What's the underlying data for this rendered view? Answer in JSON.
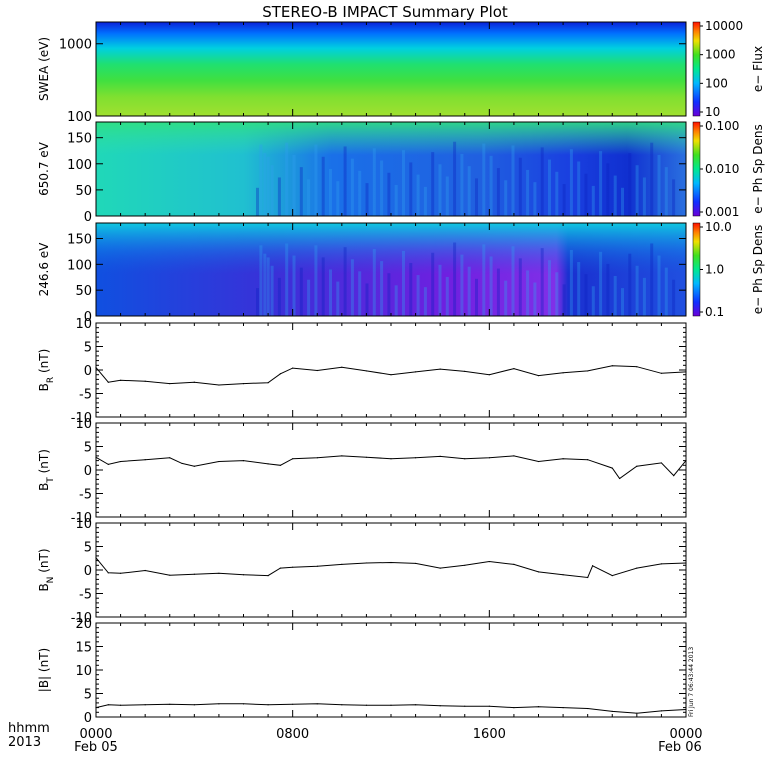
{
  "chart_data": {
    "title": "STEREO-B IMPACT Summary Plot",
    "x_axis": {
      "labels_row1": [
        "0000",
        "0800",
        "1600",
        "0000"
      ],
      "labels_row2_left": "Feb 05",
      "labels_row2_right": "Feb 06",
      "header_row1": "hhmm",
      "header_row2": "2013",
      "range_hours": [
        0,
        24
      ]
    },
    "stamp": "Fri Jun  7 06:43:44 2013",
    "panels": [
      {
        "id": "swea",
        "type": "heatmap",
        "ylabel": "SWEA (eV)",
        "y_scale": "log",
        "ylim": [
          100,
          2000
        ],
        "yticks": [
          "1000",
          "100"
        ],
        "colorbar_label": "e− Flux",
        "colorbar_ticks": [
          "10000",
          "1000",
          "100",
          "10"
        ],
        "colorbar_scale": "log",
        "colorbar_range": [
          10,
          10000
        ]
      },
      {
        "id": "pad650",
        "type": "heatmap",
        "ylabel": "650.7 eV",
        "ylim": [
          0,
          180
        ],
        "yticks": [
          "150",
          "100",
          "50",
          "0"
        ],
        "colorbar_label": "e− Ph Sp Dens",
        "colorbar_ticks": [
          "0.100",
          "0.010",
          "0.001"
        ],
        "colorbar_scale": "log",
        "colorbar_range": [
          0.001,
          0.1
        ]
      },
      {
        "id": "pad246",
        "type": "heatmap",
        "ylabel": "246.6 eV",
        "ylim": [
          0,
          180
        ],
        "yticks": [
          "150",
          "100",
          "50",
          "0"
        ],
        "colorbar_label": "e− Ph Sp Dens",
        "colorbar_ticks": [
          "10.0",
          "1.0",
          "0.1"
        ],
        "colorbar_scale": "log",
        "colorbar_range": [
          0.1,
          10
        ]
      },
      {
        "id": "br",
        "type": "line",
        "ylabel": "B",
        "ylabel_sub": "R",
        "ylabel_unit": " (nT)",
        "ylim": [
          -10,
          10
        ],
        "yticks": [
          "10",
          "5",
          "0",
          "-5",
          "-10"
        ],
        "x": [
          0,
          0.5,
          1,
          2,
          3,
          4,
          5,
          6,
          7,
          7.5,
          8,
          9,
          10,
          11,
          12,
          13,
          14,
          15,
          16,
          17,
          18,
          19,
          20,
          21,
          22,
          23,
          24
        ],
        "values": [
          0.5,
          -2.6,
          -2.2,
          -2.4,
          -2.9,
          -2.6,
          -3.2,
          -2.9,
          -2.7,
          -0.8,
          0.4,
          -0.1,
          0.6,
          -0.2,
          -1.0,
          -0.4,
          0.2,
          -0.3,
          -1.0,
          0.3,
          -1.2,
          -0.6,
          -0.2,
          0.9,
          0.7,
          -0.7,
          -0.4
        ]
      },
      {
        "id": "bt",
        "type": "line",
        "ylabel": "B",
        "ylabel_sub": "T",
        "ylabel_unit": " (nT)",
        "ylim": [
          -10,
          10
        ],
        "yticks": [
          "10",
          "5",
          "0",
          "-5",
          "-10"
        ],
        "x": [
          0,
          0.5,
          1,
          2,
          3,
          3.5,
          4,
          5,
          6,
          7,
          7.5,
          8,
          9,
          10,
          11,
          12,
          13,
          14,
          15,
          16,
          17,
          18,
          19,
          20,
          21,
          21.3,
          22,
          23,
          23.5,
          24
        ],
        "values": [
          2.7,
          1.2,
          1.8,
          2.2,
          2.6,
          1.4,
          0.8,
          1.8,
          2.0,
          1.3,
          1.0,
          2.4,
          2.6,
          3.0,
          2.7,
          2.4,
          2.6,
          2.9,
          2.4,
          2.6,
          3.0,
          1.8,
          2.4,
          2.2,
          0.4,
          -1.8,
          0.8,
          1.5,
          -1.2,
          2.0
        ]
      },
      {
        "id": "bn",
        "type": "line",
        "ylabel": "B",
        "ylabel_sub": "N",
        "ylabel_unit": " (nT)",
        "ylim": [
          -10,
          10
        ],
        "yticks": [
          "10",
          "5",
          "0",
          "-5",
          "-10"
        ],
        "x": [
          0,
          0.5,
          1,
          2,
          3,
          4,
          5,
          6,
          7,
          7.5,
          8,
          9,
          10,
          11,
          12,
          13,
          14,
          15,
          16,
          17,
          18,
          19,
          20,
          20.2,
          21,
          22,
          23,
          24
        ],
        "values": [
          2.6,
          -0.6,
          -0.7,
          -0.1,
          -1.1,
          -0.9,
          -0.7,
          -1.0,
          -1.2,
          0.4,
          0.6,
          0.8,
          1.2,
          1.5,
          1.6,
          1.4,
          0.4,
          1.0,
          1.8,
          1.2,
          -0.4,
          -1.0,
          -1.6,
          0.9,
          -1.2,
          0.4,
          1.3,
          1.5
        ]
      },
      {
        "id": "bmag",
        "type": "line",
        "ylabel": "|B| (nT)",
        "ylim": [
          0,
          20
        ],
        "yticks": [
          "20",
          "15",
          "10",
          "5",
          "0"
        ],
        "x": [
          0,
          0.5,
          1,
          2,
          3,
          4,
          5,
          6,
          7,
          8,
          9,
          10,
          11,
          12,
          13,
          14,
          15,
          16,
          17,
          18,
          19,
          20,
          21,
          22,
          23,
          24
        ],
        "values": [
          2.0,
          2.6,
          2.5,
          2.6,
          2.7,
          2.6,
          2.8,
          2.8,
          2.6,
          2.7,
          2.8,
          2.6,
          2.5,
          2.5,
          2.6,
          2.4,
          2.3,
          2.3,
          2.0,
          2.2,
          2.0,
          1.8,
          1.2,
          0.8,
          1.3,
          1.6
        ]
      }
    ]
  }
}
